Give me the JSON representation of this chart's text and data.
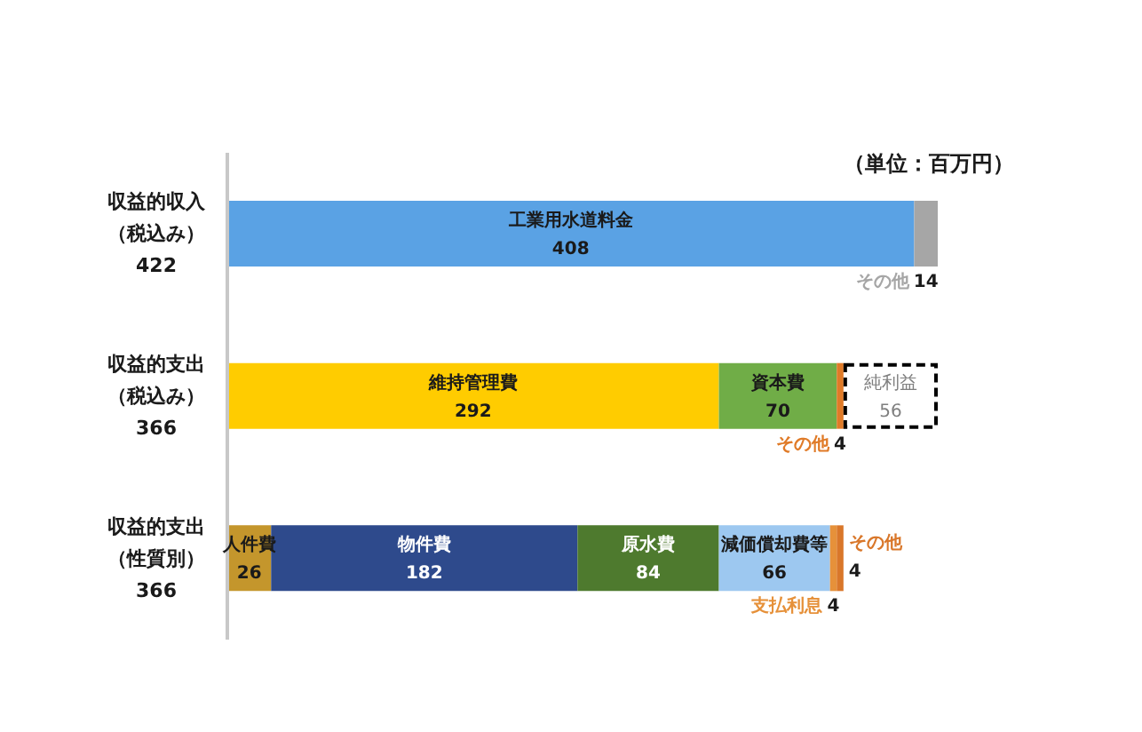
{
  "chart_data": {
    "type": "bar",
    "orientation": "horizontal",
    "stacked": true,
    "categories": [
      "収益的収入（税込み）422",
      "収益的支出（税込み）366",
      "収益的支出（性質別）366"
    ],
    "series": [
      {
        "name": "工業用水道料金",
        "color": "#5aa2e4",
        "values": [
          408,
          null,
          null
        ]
      },
      {
        "name": "その他",
        "color": "#a6a6a6",
        "values": [
          14,
          null,
          null
        ]
      },
      {
        "name": "維持管理費",
        "color": "#ffcc00",
        "values": [
          null,
          292,
          null
        ]
      },
      {
        "name": "資本費",
        "color": "#70ad47",
        "values": [
          null,
          70,
          null
        ]
      },
      {
        "name": "その他",
        "color": "#e07b28",
        "values": [
          null,
          4,
          null
        ]
      },
      {
        "name": "純利益",
        "color": "#ffffff",
        "line_style": "dashed",
        "values": [
          null,
          56,
          null
        ]
      },
      {
        "name": "人件費",
        "color": "#c4962c",
        "values": [
          null,
          null,
          26
        ]
      },
      {
        "name": "物件費",
        "color": "#2e4a8c",
        "values": [
          null,
          null,
          182
        ]
      },
      {
        "name": "原水費",
        "color": "#4e7a2e",
        "values": [
          null,
          null,
          84
        ]
      },
      {
        "name": "減価償却費等",
        "color": "#9dc8f0",
        "values": [
          null,
          null,
          66
        ]
      },
      {
        "name": "支払利息",
        "color": "#e6913a",
        "values": [
          null,
          null,
          4
        ]
      },
      {
        "name": "その他",
        "color": "#d9772a",
        "values": [
          null,
          null,
          4
        ]
      }
    ],
    "data_labels": true,
    "legend": false,
    "grid": false,
    "tick_labels": "y",
    "annotations": [
      "（単位：百万円）"
    ]
  }
}
